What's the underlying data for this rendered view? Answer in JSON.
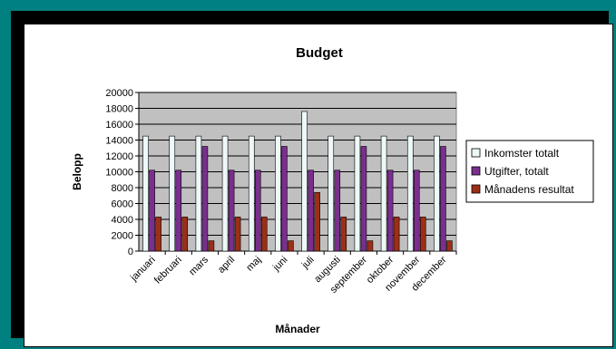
{
  "chart_data": {
    "type": "bar",
    "title": "Budget",
    "xlabel": "Månader",
    "ylabel": "Belopp",
    "ylim": [
      0,
      20000
    ],
    "yticks": [
      0,
      2000,
      4000,
      6000,
      8000,
      10000,
      12000,
      14000,
      16000,
      18000,
      20000
    ],
    "grid": true,
    "legend_position": "right",
    "categories": [
      "januari",
      "februari",
      "mars",
      "april",
      "maj",
      "juni",
      "juli",
      "augusti",
      "september",
      "oktober",
      "november",
      "december"
    ],
    "series": [
      {
        "name": "Inkomster totalt",
        "color": "#eef8f8",
        "values": [
          14500,
          14500,
          14500,
          14500,
          14500,
          14500,
          17600,
          14500,
          14500,
          14500,
          14500,
          14500
        ]
      },
      {
        "name": "Utgifter, totalt",
        "color": "#7a2e8e",
        "values": [
          10200,
          10200,
          13200,
          10200,
          10200,
          13200,
          10200,
          10200,
          13200,
          10200,
          10200,
          13200
        ]
      },
      {
        "name": "Månadens resultat",
        "color": "#9c2f17",
        "values": [
          4300,
          4300,
          1300,
          4300,
          4300,
          1300,
          7400,
          4300,
          1300,
          4300,
          4300,
          1300
        ]
      }
    ]
  },
  "colors": {
    "plot_background": "#c0c0c0",
    "chart_background": "#ffffff",
    "window_background": "#008080"
  }
}
